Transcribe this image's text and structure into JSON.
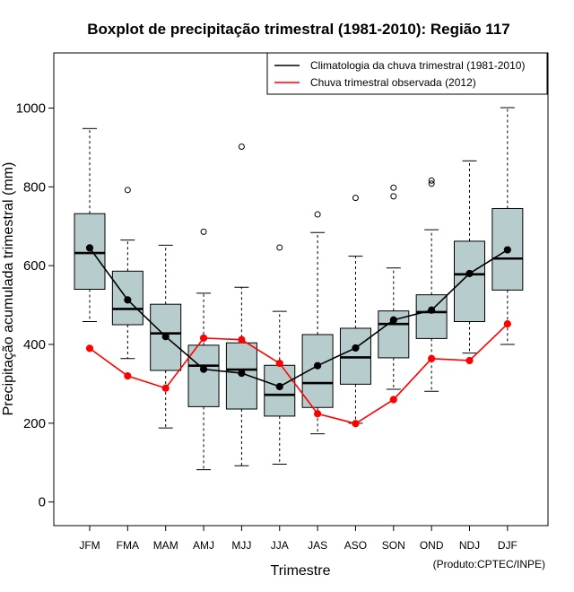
{
  "chart_data": {
    "type": "boxplot",
    "title": "Boxplot de precipitação trimestral (1981-2010): Região 117",
    "xlabel": "Trimestre",
    "ylabel": "Precipitação acumulada trimestral (mm)",
    "credit": "(Produto:CPTEC/INPE)",
    "ylim": [
      -60,
      1140
    ],
    "yticks": [
      0,
      200,
      400,
      600,
      800,
      1000
    ],
    "categories": [
      "JFM",
      "FMA",
      "MAM",
      "AMJ",
      "MJJ",
      "JJA",
      "JAS",
      "ASO",
      "SON",
      "OND",
      "NDJ",
      "DJF"
    ],
    "boxes": [
      {
        "min": 458,
        "q1": 540,
        "median": 632,
        "q3": 732,
        "max": 948,
        "outliers": []
      },
      {
        "min": 364,
        "q1": 450,
        "median": 490,
        "q3": 586,
        "max": 665,
        "outliers": [
          792
        ]
      },
      {
        "min": 188,
        "q1": 334,
        "median": 428,
        "q3": 502,
        "max": 652,
        "outliers": []
      },
      {
        "min": 82,
        "q1": 242,
        "median": 346,
        "q3": 398,
        "max": 530,
        "outliers": [
          686
        ]
      },
      {
        "min": 92,
        "q1": 236,
        "median": 336,
        "q3": 404,
        "max": 545,
        "outliers": [
          902
        ]
      },
      {
        "min": 96,
        "q1": 218,
        "median": 272,
        "q3": 347,
        "max": 484,
        "outliers": [
          646
        ]
      },
      {
        "min": 173,
        "q1": 240,
        "median": 302,
        "q3": 425,
        "max": 684,
        "outliers": [
          730
        ]
      },
      {
        "min": 200,
        "q1": 299,
        "median": 367,
        "q3": 441,
        "max": 624,
        "outliers": [
          772
        ]
      },
      {
        "min": 286,
        "q1": 366,
        "median": 452,
        "q3": 485,
        "max": 594,
        "outliers": [
          776,
          798
        ]
      },
      {
        "min": 281,
        "q1": 415,
        "median": 482,
        "q3": 526,
        "max": 691,
        "outliers": [
          808,
          816
        ]
      },
      {
        "min": 378,
        "q1": 458,
        "median": 578,
        "q3": 662,
        "max": 866,
        "outliers": []
      },
      {
        "min": 400,
        "q1": 538,
        "median": 618,
        "q3": 745,
        "max": 1001,
        "outliers": []
      }
    ],
    "series": [
      {
        "name": "Climatologia da chuva trimestral (1981-2010)",
        "color": "#000000",
        "values": [
          645,
          513,
          420,
          337,
          327,
          293,
          346,
          391,
          462,
          487,
          580,
          640
        ]
      },
      {
        "name": "Chuva trimestral observada (2012)",
        "color": "#ff0000",
        "values": [
          390,
          320,
          289,
          416,
          412,
          352,
          224,
          199,
          260,
          364,
          359,
          452
        ]
      }
    ],
    "box_fill": "#b7cdcd",
    "legend_position": "top-right"
  }
}
